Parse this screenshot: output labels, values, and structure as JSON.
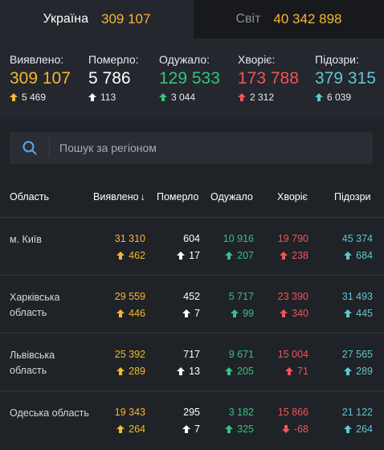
{
  "tabs": [
    {
      "label": "Україна",
      "value": "309 107"
    },
    {
      "label": "Світ",
      "value": "40 342 898"
    }
  ],
  "summary": [
    {
      "label": "Виявлено:",
      "value": "309 107",
      "delta": "5 469",
      "color": "#f5b731"
    },
    {
      "label": "Померло:",
      "value": "5 786",
      "delta": "113",
      "color": "#ffffff"
    },
    {
      "label": "Одужало:",
      "value": "129 533",
      "delta": "3 044",
      "color": "#33c481"
    },
    {
      "label": "Хворіє:",
      "value": "173 788",
      "delta": "2 312",
      "color": "#f0555a"
    },
    {
      "label": "Підозри:",
      "value": "379 315",
      "delta": "6 039",
      "color": "#5fc7cf"
    }
  ],
  "search": {
    "placeholder": "Пошук за регіоном",
    "icon": "search-icon"
  },
  "table": {
    "columns": [
      "Область",
      "Виявлено",
      "Померло",
      "Одужало",
      "Хворіє",
      "Підозри"
    ],
    "sort_indicator": "↓",
    "rows": [
      {
        "region": "м. Київ",
        "confirmed": "31 310",
        "confirmed_delta": "462",
        "deaths": "604",
        "deaths_delta": "17",
        "recovered": "10 916",
        "recovered_delta": "207",
        "sick": "19 790",
        "sick_delta": "238",
        "suspected": "45 374",
        "suspected_delta": "684"
      },
      {
        "region": "Харківська область",
        "confirmed": "29 559",
        "confirmed_delta": "446",
        "deaths": "452",
        "deaths_delta": "7",
        "recovered": "5 717",
        "recovered_delta": "99",
        "sick": "23 390",
        "sick_delta": "340",
        "suspected": "31 493",
        "suspected_delta": "445"
      },
      {
        "region": "Львівська область",
        "confirmed": "25 392",
        "confirmed_delta": "289",
        "deaths": "717",
        "deaths_delta": "13",
        "recovered": "9 671",
        "recovered_delta": "205",
        "sick": "15 004",
        "sick_delta": "71",
        "suspected": "27 565",
        "suspected_delta": "289"
      },
      {
        "region": "Одеська область",
        "confirmed": "19 343",
        "confirmed_delta": "264",
        "deaths": "295",
        "deaths_delta": "7",
        "recovered": "3 182",
        "recovered_delta": "325",
        "sick": "15 866",
        "sick_delta": "-68",
        "sick_delta_direction": "down",
        "suspected": "21 122",
        "suspected_delta": "264"
      }
    ]
  }
}
